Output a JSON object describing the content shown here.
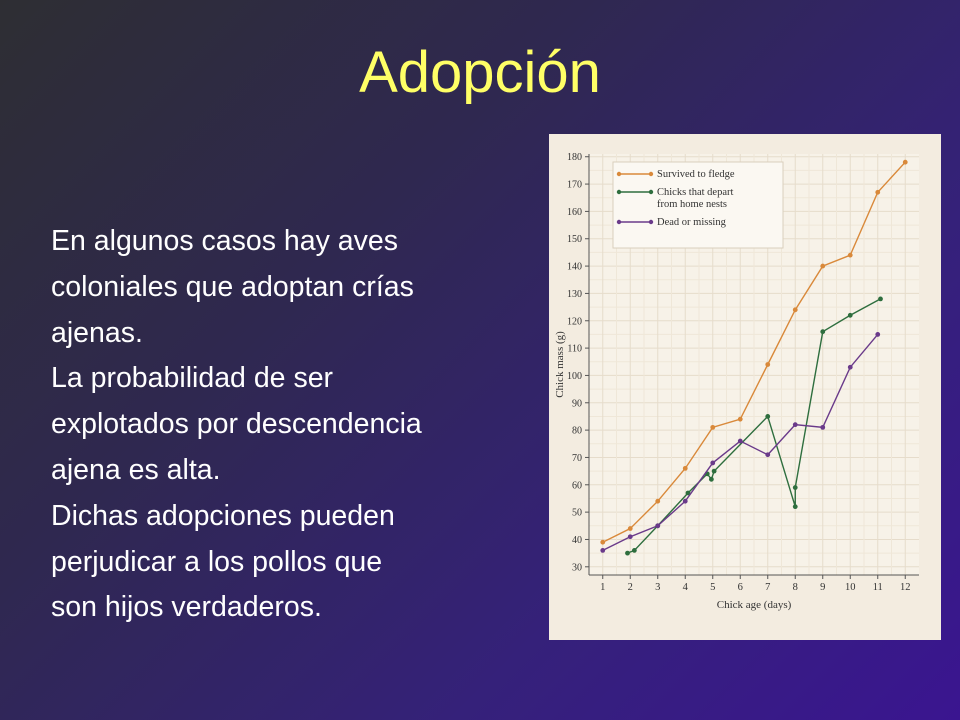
{
  "slide": {
    "title": "Adopción",
    "body_lines": [
      "En algunos casos hay aves",
      "coloniales que adoptan crías",
      "ajenas.",
      "La probabilidad de ser",
      "explotados por descendencia",
      "ajena es alta.",
      "Dichas adopciones pueden",
      "perjudicar a los pollos que",
      "son hijos verdaderos."
    ]
  },
  "colors": {
    "title": "#ffff66",
    "text": "#ffffff",
    "survived": "#d9893a",
    "depart": "#2e6e3e",
    "dead": "#6a3a8a"
  },
  "chart_data": {
    "type": "line",
    "xlabel": "Chick age (days)",
    "ylabel": "Chick mass (g)",
    "xlim": [
      0.5,
      12.5
    ],
    "ylim": [
      27,
      181
    ],
    "x_ticks": [
      1,
      2,
      3,
      4,
      5,
      6,
      7,
      8,
      9,
      10,
      11,
      12
    ],
    "y_ticks": [
      30,
      40,
      50,
      60,
      70,
      80,
      90,
      100,
      110,
      120,
      130,
      140,
      150,
      160,
      170,
      180
    ],
    "grid": true,
    "legend_position": "top-left",
    "series": [
      {
        "name": "Survived to fledge",
        "color": "#d9893a",
        "points": [
          [
            1,
            39
          ],
          [
            2,
            44
          ],
          [
            3,
            54
          ],
          [
            4,
            66
          ],
          [
            5,
            81
          ],
          [
            6,
            84
          ],
          [
            7,
            104
          ],
          [
            8,
            124
          ],
          [
            9,
            140
          ],
          [
            10,
            144
          ],
          [
            11,
            167
          ],
          [
            12,
            178
          ]
        ]
      },
      {
        "name": "Chicks that depart from home nests",
        "legend_lines": [
          "Chicks that depart",
          "from home nests"
        ],
        "color": "#2e6e3e",
        "points": [
          [
            1.9,
            35
          ],
          [
            2.15,
            36
          ],
          [
            3,
            45
          ],
          [
            4.1,
            57
          ],
          [
            4.8,
            64
          ],
          [
            4.95,
            62
          ],
          [
            5.05,
            65
          ],
          [
            7,
            85
          ],
          [
            8,
            52
          ],
          [
            8,
            59
          ],
          [
            9,
            116
          ],
          [
            10,
            122
          ],
          [
            11.1,
            128
          ]
        ]
      },
      {
        "name": "Dead or missing",
        "color": "#6a3a8a",
        "points": [
          [
            1,
            36
          ],
          [
            2,
            41
          ],
          [
            3,
            45
          ],
          [
            4,
            54
          ],
          [
            5,
            68
          ],
          [
            6,
            76
          ],
          [
            7,
            71
          ],
          [
            8,
            82
          ],
          [
            9,
            81
          ],
          [
            10,
            103
          ],
          [
            11,
            115
          ]
        ]
      }
    ]
  }
}
